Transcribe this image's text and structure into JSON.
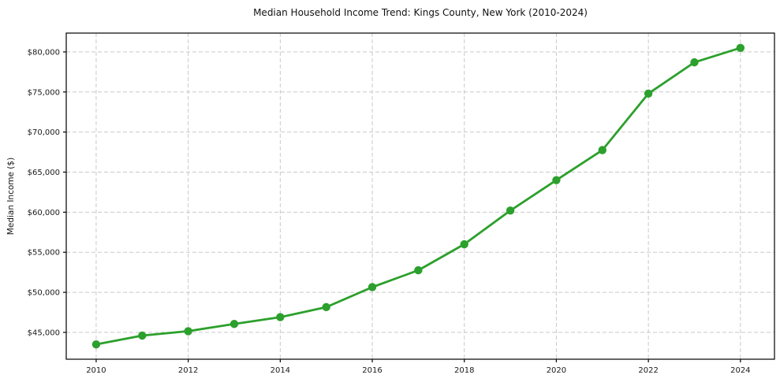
{
  "chart_data": {
    "type": "line",
    "title": "Median Household Income Trend: Kings County, New York (2010-2024)",
    "xlabel": "",
    "ylabel": "Median Income ($)",
    "x": [
      2010,
      2011,
      2012,
      2013,
      2014,
      2015,
      2016,
      2017,
      2018,
      2019,
      2020,
      2021,
      2022,
      2023,
      2024
    ],
    "series": [
      {
        "name": "Median Household Income",
        "values": [
          43500,
          44600,
          45150,
          46050,
          46900,
          48150,
          50650,
          52750,
          56000,
          60200,
          64000,
          67750,
          74800,
          78700,
          80500
        ]
      }
    ],
    "xlim": [
      2009.35,
      2024.74
    ],
    "ylim": [
      41650,
      82350
    ],
    "xticks": [
      2010,
      2012,
      2014,
      2016,
      2018,
      2020,
      2022,
      2024
    ],
    "xtick_labels": [
      "2010",
      "2012",
      "2014",
      "2016",
      "2018",
      "2020",
      "2022",
      "2024"
    ],
    "yticks": [
      45000,
      50000,
      55000,
      60000,
      65000,
      70000,
      75000,
      80000
    ],
    "ytick_labels": [
      "$45,000",
      "$50,000",
      "$55,000",
      "$60,000",
      "$65,000",
      "$70,000",
      "$75,000",
      "$80,000"
    ],
    "grid": true,
    "grid_style": "dashed",
    "legend": false,
    "style": {
      "line_color": "#2ca02c",
      "marker": "circle",
      "marker_radius": 5.2,
      "line_width": 2.8,
      "grid_color": "#c9c9c9",
      "spine_color": "#000000",
      "text_color": "#1a1a1a",
      "background": "#ffffff"
    }
  }
}
